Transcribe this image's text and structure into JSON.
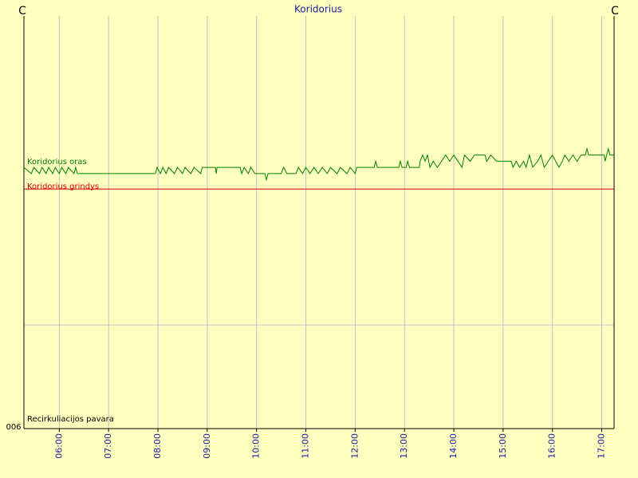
{
  "chart_data": {
    "type": "line",
    "title": "Koridorius",
    "y_label": "C",
    "y_label_right": "C",
    "y2_label": "006",
    "xlim": [
      "05:17",
      "17:15"
    ],
    "xticks": [
      "06:00",
      "07:00",
      "08:00",
      "09:00",
      "10:00",
      "11:00",
      "12:00",
      "13:00",
      "14:00",
      "15:00",
      "16:00",
      "17:00"
    ],
    "ylim": [
      15,
      25
    ],
    "y2lim": [
      0,
      1
    ],
    "grid": true,
    "series": [
      {
        "name": "Koridorius oras",
        "color": "#008000",
        "x": [
          "05:17",
          "05:26",
          "05:29",
          "05:36",
          "05:39",
          "05:44",
          "05:47",
          "05:52",
          "05:55",
          "06:00",
          "06:03",
          "06:08",
          "06:11",
          "06:18",
          "06:20",
          "06:22",
          "07:57",
          "07:59",
          "08:03",
          "08:06",
          "08:10",
          "08:13",
          "08:20",
          "08:24",
          "08:30",
          "08:33",
          "08:40",
          "08:44",
          "08:52",
          "08:54",
          "09:10",
          "09:11",
          "09:12",
          "09:40",
          "09:42",
          "09:45",
          "09:50",
          "09:53",
          "09:58",
          "10:10",
          "10:12",
          "10:14",
          "10:30",
          "10:33",
          "10:37",
          "10:48",
          "10:51",
          "10:56",
          "11:00",
          "11:05",
          "11:10",
          "11:15",
          "11:20",
          "11:26",
          "11:30",
          "11:38",
          "11:42",
          "11:50",
          "11:54",
          "12:00",
          "12:02",
          "12:23",
          "12:25",
          "12:27",
          "12:53",
          "12:55",
          "12:57",
          "13:02",
          "13:04",
          "13:06",
          "13:18",
          "13:19",
          "13:22",
          "13:25",
          "13:28",
          "13:31",
          "13:35",
          "13:40",
          "13:45",
          "13:50",
          "13:55",
          "14:00",
          "14:05",
          "14:10",
          "14:13",
          "14:20",
          "14:25",
          "14:38",
          "14:40",
          "14:45",
          "14:52",
          "15:00",
          "15:10",
          "15:12",
          "15:16",
          "15:20",
          "15:25",
          "15:28",
          "15:32",
          "15:36",
          "15:42",
          "15:46",
          "15:50",
          "15:55",
          "16:00",
          "16:04",
          "16:08",
          "16:12",
          "16:15",
          "16:20",
          "16:25",
          "16:30",
          "16:35",
          "16:40",
          "16:42",
          "16:44",
          "17:03",
          "17:04",
          "17:06",
          "17:08",
          "17:10",
          "17:15"
        ],
        "values": [
          20.1,
          19.9,
          20.1,
          19.9,
          20.1,
          19.9,
          20.1,
          19.9,
          20.1,
          19.9,
          20.1,
          19.9,
          20.1,
          19.9,
          20.1,
          19.9,
          19.9,
          20.1,
          19.9,
          20.1,
          19.9,
          20.1,
          19.9,
          20.1,
          19.9,
          20.1,
          19.9,
          20.1,
          19.9,
          20.1,
          20.1,
          19.9,
          20.1,
          20.1,
          19.9,
          20.1,
          19.9,
          20.1,
          19.9,
          19.9,
          19.7,
          19.9,
          19.9,
          20.1,
          19.9,
          19.9,
          20.1,
          19.9,
          20.1,
          19.9,
          20.1,
          19.9,
          20.1,
          19.9,
          20.1,
          19.9,
          20.1,
          19.9,
          20.1,
          19.9,
          20.1,
          20.1,
          20.3,
          20.1,
          20.1,
          20.3,
          20.1,
          20.1,
          20.3,
          20.1,
          20.1,
          20.3,
          20.5,
          20.3,
          20.5,
          20.1,
          20.3,
          20.1,
          20.3,
          20.5,
          20.3,
          20.5,
          20.3,
          20.1,
          20.5,
          20.3,
          20.5,
          20.5,
          20.3,
          20.5,
          20.3,
          20.3,
          20.3,
          20.1,
          20.3,
          20.1,
          20.3,
          20.1,
          20.5,
          20.1,
          20.3,
          20.5,
          20.1,
          20.3,
          20.5,
          20.3,
          20.1,
          20.3,
          20.5,
          20.3,
          20.5,
          20.3,
          20.5,
          20.5,
          20.7,
          20.5,
          20.5,
          20.3,
          20.5,
          20.7,
          20.5,
          20.5
        ]
      },
      {
        "name": "Koridorius grindys",
        "color": "#e00000",
        "x": [
          "05:17",
          "17:15"
        ],
        "values": [
          19.4,
          19.4
        ]
      },
      {
        "name": "Recirkuliacijos pavara",
        "color": "#000000",
        "axis": "y2",
        "x": [
          "05:17",
          "17:15"
        ],
        "values": [
          0,
          0
        ]
      }
    ]
  }
}
